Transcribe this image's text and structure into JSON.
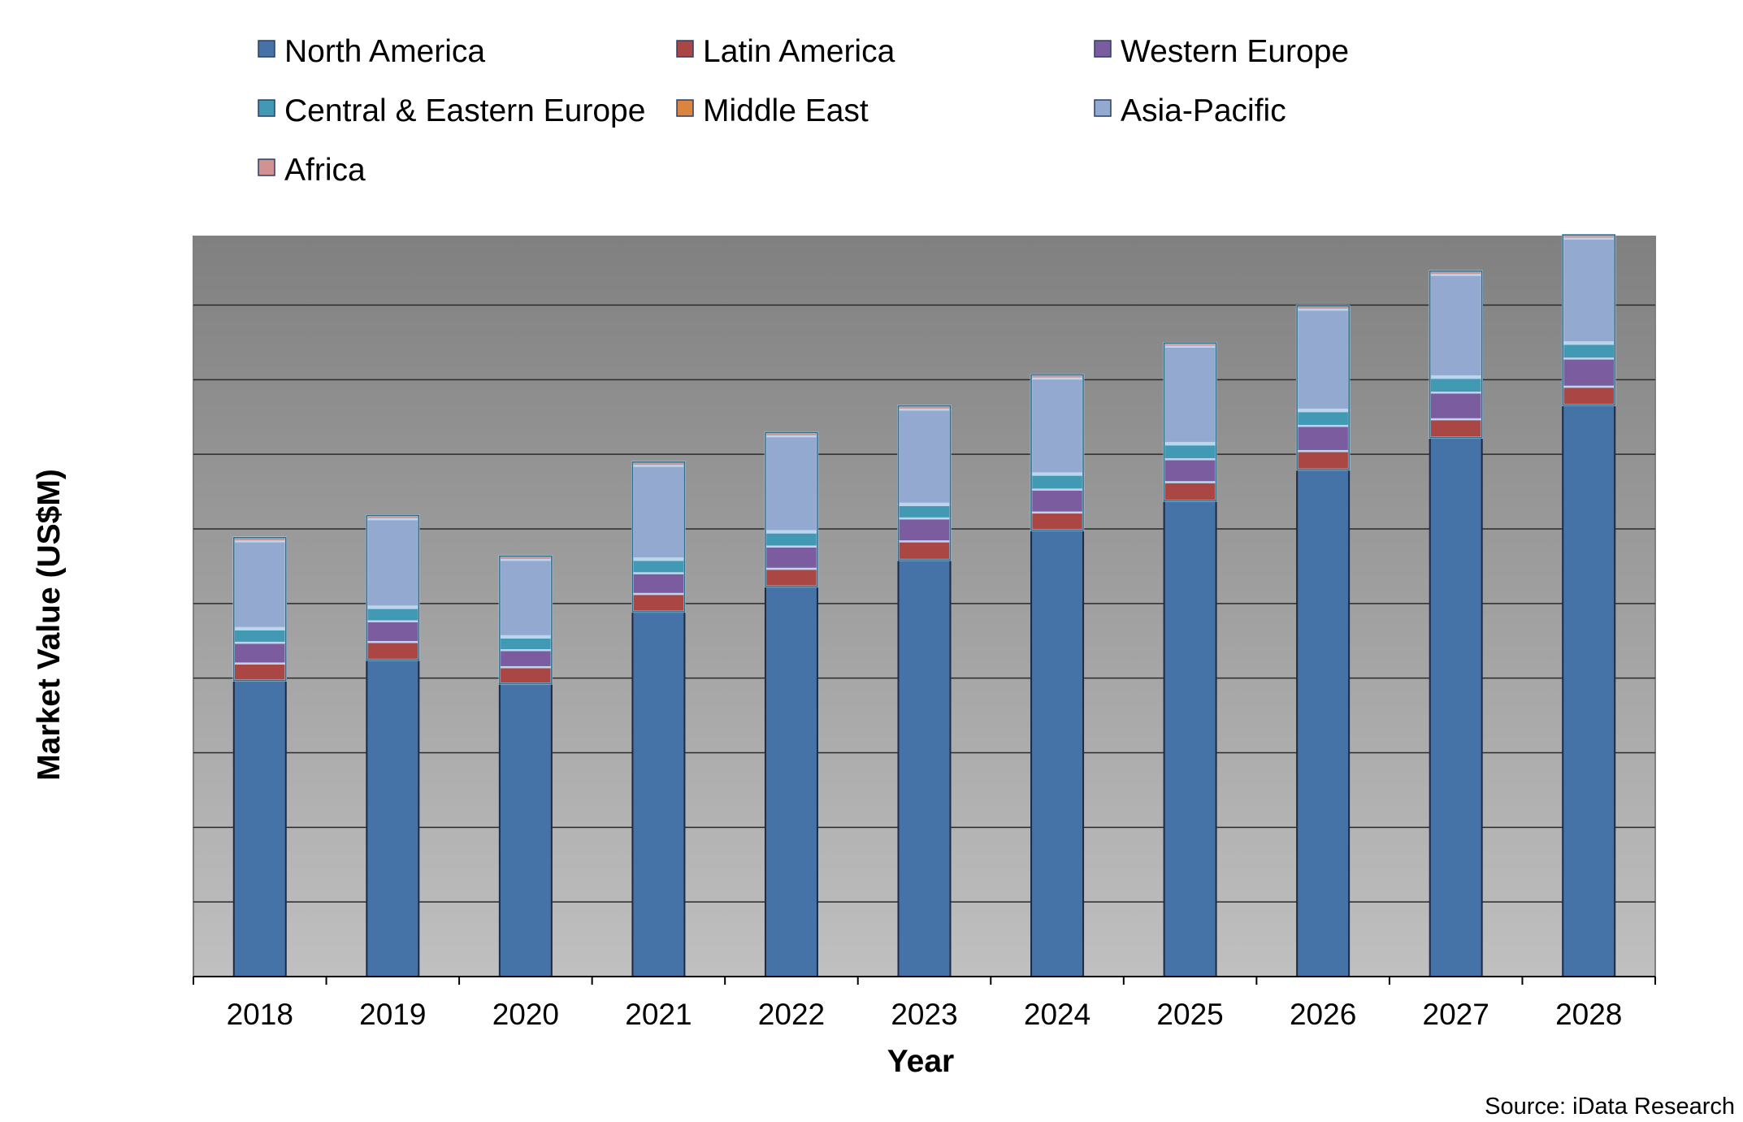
{
  "chart_data": {
    "type": "bar",
    "stacked": true,
    "xlabel": "Year",
    "ylabel": "Market Value (US$M)",
    "source": "Source: iData Research",
    "categories": [
      "2018",
      "2019",
      "2020",
      "2021",
      "2022",
      "2023",
      "2024",
      "2025",
      "2026",
      "2027",
      "2028"
    ],
    "ylim": [
      0,
      100
    ],
    "y_tick_labels_shown": false,
    "grid": true,
    "legend_position": "top",
    "series": [
      {
        "name": "North America",
        "color": "#4572A7",
        "values": [
          40.0,
          42.8,
          39.6,
          49.3,
          52.7,
          56.3,
          60.3,
          64.3,
          68.5,
          72.8,
          77.2
        ]
      },
      {
        "name": "Latin America",
        "color": "#AA4643",
        "values": [
          2.3,
          2.4,
          2.2,
          2.4,
          2.4,
          2.5,
          2.4,
          2.5,
          2.5,
          2.5,
          2.5
        ]
      },
      {
        "name": "Western Europe",
        "color": "#7A5C9F",
        "values": [
          2.8,
          2.8,
          2.3,
          2.8,
          3.0,
          3.1,
          3.1,
          3.1,
          3.4,
          3.6,
          3.8
        ]
      },
      {
        "name": "Central & Eastern Europe",
        "color": "#4199B4",
        "values": [
          1.8,
          1.8,
          1.7,
          1.8,
          1.9,
          1.8,
          2.0,
          2.0,
          2.0,
          2.0,
          2.0
        ]
      },
      {
        "name": "Middle East",
        "color": "#DB843D",
        "values": [
          0.2,
          0.2,
          0.2,
          0.2,
          0.2,
          0.2,
          0.2,
          0.2,
          0.2,
          0.2,
          0.2
        ]
      },
      {
        "name": "Asia-Pacific",
        "color": "#93A9CF",
        "values": [
          11.7,
          11.8,
          10.3,
          12.5,
          12.8,
          12.7,
          12.8,
          13.0,
          13.5,
          13.7,
          14.0
        ]
      },
      {
        "name": "Africa",
        "color": "#D19392",
        "values": [
          0.5,
          0.5,
          0.5,
          0.5,
          0.5,
          0.5,
          0.5,
          0.5,
          0.5,
          0.5,
          0.5
        ]
      }
    ]
  }
}
